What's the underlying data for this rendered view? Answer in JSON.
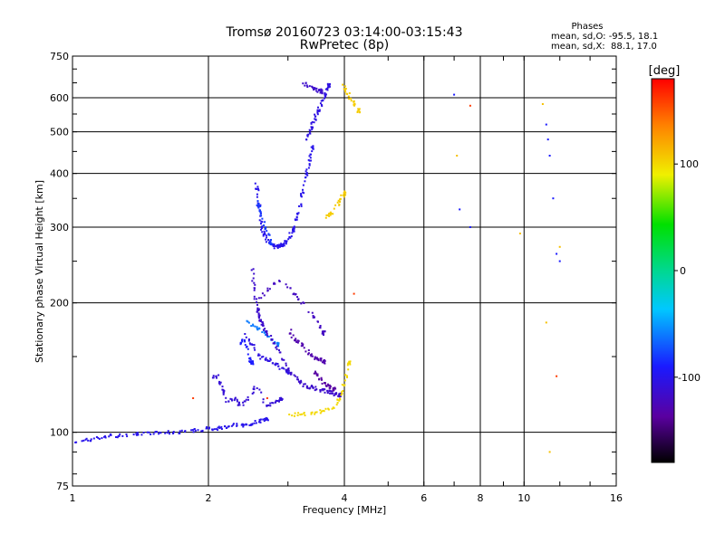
{
  "chart_data": {
    "type": "scatter",
    "title": "Tromsø 20160723 03:14:00-03:15:43",
    "subtitle": "RwPretec (8p)",
    "xlabel": "Frequency [MHz]",
    "ylabel": "Stationary phase Virtual Height [km]",
    "x_scale": "log",
    "y_scale": "log",
    "xlim": [
      1,
      16
    ],
    "ylim": [
      75,
      750
    ],
    "x_ticks": [
      1,
      2,
      4,
      6,
      8,
      10,
      16
    ],
    "y_ticks": [
      75,
      100,
      200,
      300,
      400,
      500,
      600,
      750
    ],
    "grid": true,
    "phase_stats": {
      "title": "Phases",
      "line_o": "mean, sd,O: -95.5, 18.1",
      "line_x": "mean, sd,X:  88.1, 17.0"
    },
    "colorbar": {
      "label": "[deg]",
      "range": [
        -180,
        180
      ],
      "ticks": [
        -100,
        0,
        100
      ]
    },
    "traces": [
      {
        "x": [
          1.0,
          1.08,
          1.15,
          1.22,
          1.3,
          1.4,
          1.5,
          1.6,
          1.7,
          1.8,
          1.9,
          2.0,
          2.1,
          2.2,
          2.3,
          2.4,
          2.5,
          2.6,
          2.7
        ],
        "y": [
          95,
          96,
          97,
          98,
          98,
          99,
          100,
          100,
          100,
          101,
          101,
          102,
          102,
          103,
          104,
          104,
          105,
          106,
          107
        ],
        "phase": -100
      },
      {
        "x": [
          2.05,
          2.1,
          2.15,
          2.2,
          2.3,
          2.35,
          2.45,
          2.55,
          2.7,
          2.8,
          2.9
        ],
        "y": [
          135,
          135,
          125,
          118,
          120,
          115,
          120,
          128,
          115,
          118,
          120
        ],
        "phase": -110
      },
      {
        "x": [
          2.4,
          2.5,
          2.6,
          2.7,
          2.8,
          2.9,
          3.0
        ],
        "y": [
          170,
          160,
          150,
          148,
          145,
          140,
          138
        ],
        "phase": -105
      },
      {
        "x": [
          2.45,
          2.55,
          2.65,
          2.75,
          2.85
        ],
        "y": [
          180,
          175,
          172,
          165,
          160
        ],
        "phase": -60
      },
      {
        "x": [
          2.5,
          2.52,
          2.55,
          2.58,
          2.6,
          2.62,
          2.65,
          2.7,
          2.8,
          2.9,
          3.0,
          3.1,
          3.2,
          3.3,
          3.4,
          3.5,
          3.6,
          3.7,
          3.8,
          3.9
        ],
        "y": [
          240,
          220,
          200,
          190,
          185,
          180,
          175,
          170,
          160,
          150,
          140,
          135,
          130,
          128,
          127,
          126,
          125,
          124,
          123,
          122
        ],
        "phase": -115
      },
      {
        "x": [
          3.0,
          3.1,
          3.2,
          3.3,
          3.4,
          3.5,
          3.6
        ],
        "y": [
          175,
          165,
          160,
          155,
          150,
          148,
          146
        ],
        "phase": -130
      },
      {
        "x": [
          3.4,
          3.5,
          3.6,
          3.7,
          3.8
        ],
        "y": [
          140,
          135,
          130,
          128,
          126
        ],
        "phase": -135
      },
      {
        "x": [
          2.55,
          2.57,
          2.6,
          2.62,
          2.65,
          2.7,
          2.75,
          2.8,
          2.85,
          2.9,
          2.95,
          3.0,
          3.05,
          3.1,
          3.15,
          3.2,
          3.25,
          3.3,
          3.35,
          3.4
        ],
        "y": [
          380,
          360,
          330,
          300,
          290,
          280,
          275,
          270,
          270,
          272,
          275,
          280,
          290,
          300,
          320,
          340,
          370,
          400,
          430,
          460
        ],
        "phase": -100
      },
      {
        "x": [
          2.55,
          2.6,
          2.65,
          2.7,
          2.75
        ],
        "y": [
          350,
          330,
          310,
          290,
          275
        ],
        "phase": -80
      },
      {
        "x": [
          3.3,
          3.35,
          3.4,
          3.45,
          3.5,
          3.55,
          3.6,
          3.65,
          3.7
        ],
        "y": [
          480,
          500,
          520,
          540,
          560,
          580,
          600,
          620,
          640
        ],
        "phase": -105
      },
      {
        "x": [
          3.25,
          3.35,
          3.45,
          3.55
        ],
        "y": [
          650,
          640,
          630,
          620
        ],
        "phase": -115
      },
      {
        "x": [
          3.0,
          3.2,
          3.4,
          3.6,
          3.8,
          3.9,
          4.0,
          4.1
        ],
        "y": [
          110,
          110,
          111,
          112,
          115,
          120,
          130,
          145
        ],
        "phase": 100
      },
      {
        "x": [
          3.6,
          3.7,
          3.8,
          3.9,
          4.0
        ],
        "y": [
          315,
          320,
          330,
          345,
          360
        ],
        "phase": 105
      },
      {
        "x": [
          3.95,
          4.05,
          4.15,
          4.3
        ],
        "y": [
          650,
          620,
          590,
          560
        ],
        "phase": 105
      },
      {
        "x": [
          2.55,
          2.7,
          2.9,
          3.1,
          3.3,
          3.5,
          3.6
        ],
        "y": [
          200,
          215,
          225,
          210,
          195,
          180,
          170
        ],
        "phase": -120
      },
      {
        "x": [
          2.35,
          2.4,
          2.45,
          2.5
        ],
        "y": [
          160,
          165,
          150,
          145
        ],
        "phase": -90
      },
      {
        "x": [
          7.0,
          7.2,
          7.6,
          11.2,
          11.3,
          11.4,
          11.6,
          11.8,
          12.0
        ],
        "y": [
          610,
          330,
          300,
          520,
          480,
          440,
          350,
          260,
          250
        ],
        "phase": -90
      },
      {
        "x": [
          7.1,
          9.8,
          11.0,
          11.2,
          11.4,
          12.0
        ],
        "y": [
          440,
          290,
          580,
          180,
          90,
          270
        ],
        "phase": 110
      },
      {
        "x": [
          1.85,
          2.7,
          4.2,
          7.6,
          11.8
        ],
        "y": [
          120,
          120,
          210,
          575,
          135
        ],
        "phase": 160
      }
    ]
  }
}
